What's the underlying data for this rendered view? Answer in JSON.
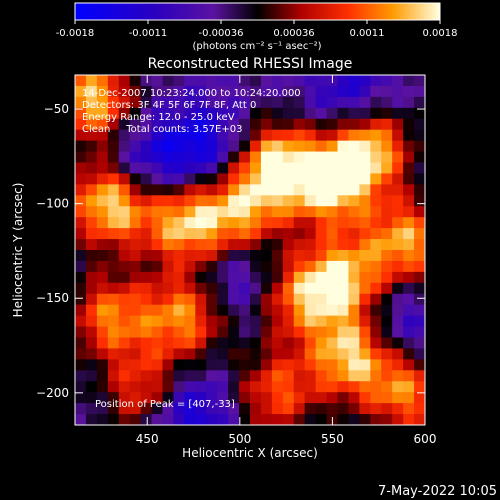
{
  "chart_data": {
    "type": "heatmap",
    "title": "Reconstructed RHESSI Image",
    "xlabel": "Heliocentric X (arcsec)",
    "ylabel": "Heliocentric Y (arcsec)",
    "xlim": [
      411,
      600
    ],
    "ylim": [
      -217,
      -32
    ],
    "xticks": [
      450,
      500,
      550,
      600
    ],
    "yticks": [
      -50,
      -100,
      -150,
      -200
    ],
    "colorbar": {
      "min": -0.0018,
      "max": 0.0018,
      "ticks": [
        "-0.0018",
        "-0.0011",
        "-0.00036",
        "0.00036",
        "0.0011",
        "0.0018"
      ],
      "units_label": "(photons cm⁻² s⁻¹ asec⁻²)"
    },
    "annotations": [
      "14-Dec-2007 10:23:24.000 to 10:24:20.000",
      "Detectors: 3F 4F 5F 6F 7F 8F, Att 0",
      "Energy Range: 12.0 - 25.0 keV",
      "Clean     Total counts: 3.57E+03"
    ],
    "peak_label": "Position of Peak = [407,-33]",
    "grid": false,
    "image_grid": {
      "nx": 32,
      "ny": 32,
      "bright_regions": [
        {
          "x": 420,
          "y": -45,
          "value": 0.0016
        },
        {
          "x": 430,
          "y": -100,
          "value": 0.0018
        },
        {
          "x": 470,
          "y": -110,
          "value": 0.0015
        },
        {
          "x": 500,
          "y": -105,
          "value": 0.0012
        },
        {
          "x": 520,
          "y": -80,
          "value": 0.0017
        },
        {
          "x": 550,
          "y": -90,
          "value": 0.0016
        },
        {
          "x": 570,
          "y": -70,
          "value": 0.0016
        },
        {
          "x": 590,
          "y": -120,
          "value": 0.0014
        },
        {
          "x": 555,
          "y": -140,
          "value": 0.0015
        },
        {
          "x": 560,
          "y": -180,
          "value": 0.0016
        },
        {
          "x": 590,
          "y": -200,
          "value": 0.0012
        },
        {
          "x": 470,
          "y": -160,
          "value": 0.0013
        },
        {
          "x": 430,
          "y": -160,
          "value": 0.0012
        },
        {
          "x": 450,
          "y": -200,
          "value": 0.0011
        },
        {
          "x": 520,
          "y": -200,
          "value": 0.001
        },
        {
          "x": 530,
          "y": -150,
          "value": 0.001
        }
      ],
      "dark_regions": [
        {
          "x": 480,
          "y": -70,
          "value": -0.0012
        },
        {
          "x": 470,
          "y": -210,
          "value": -0.0014
        },
        {
          "x": 560,
          "y": -45,
          "value": -0.001
        },
        {
          "x": 450,
          "y": -80,
          "value": -0.001
        },
        {
          "x": 500,
          "y": -140,
          "value": -0.0008
        },
        {
          "x": 585,
          "y": -165,
          "value": -0.0008
        }
      ]
    }
  },
  "footer": {
    "date": "7-May-2022 10:05"
  }
}
